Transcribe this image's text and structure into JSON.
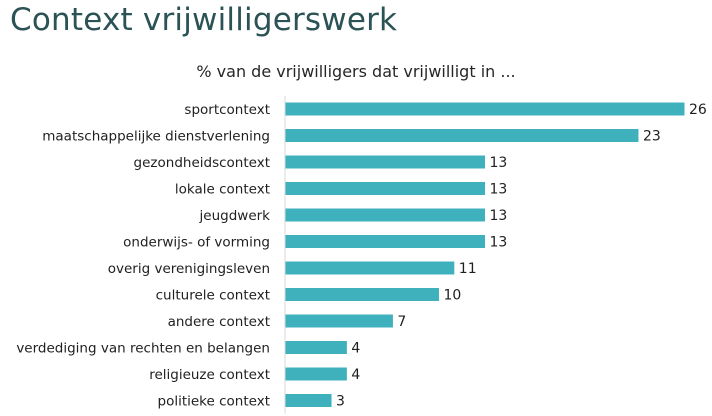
{
  "page": {
    "title": "Context vrijwilligerswerk"
  },
  "chart_data": {
    "type": "bar",
    "orientation": "horizontal",
    "title": "% van de vrijwilligers dat vrijwilligt in ...",
    "xlabel": "",
    "ylabel": "",
    "categories": [
      "sportcontext",
      "maatschappelijke dienstverlening",
      "gezondheidscontext",
      "lokale context",
      "jeugdwerk",
      "onderwijs- of  vorming",
      "overig verenigingsleven",
      "culturele context",
      "andere context",
      "verdediging van rechten en belangen",
      "religieuze context",
      "politieke context"
    ],
    "values": [
      26,
      23,
      13,
      13,
      13,
      13,
      11,
      10,
      7,
      4,
      4,
      3
    ],
    "data_labels": [
      "26",
      "23",
      "13",
      "13",
      "13",
      "13",
      "11",
      "10",
      "7",
      "4",
      "4",
      "3"
    ],
    "xlim": [
      0,
      26
    ],
    "grid": false,
    "legend": "none",
    "bar_color": "#3fb1bd"
  }
}
